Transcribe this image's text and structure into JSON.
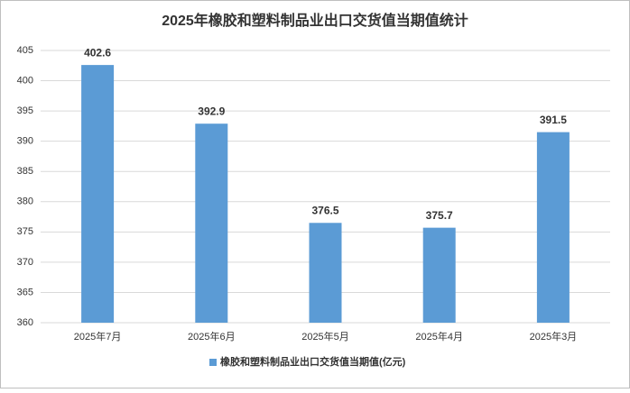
{
  "chart_data": {
    "type": "bar",
    "title": "2025年橡胶和塑料制品业出口交货值当期值统计",
    "categories": [
      "2025年7月",
      "2025年6月",
      "2025年5月",
      "2025年4月",
      "2025年3月"
    ],
    "series": [
      {
        "name": "橡胶和塑料制品业出口交货值当期值(亿元)",
        "color": "#5b9bd5",
        "values": [
          402.6,
          392.9,
          376.5,
          375.7,
          391.5
        ]
      }
    ],
    "ylim": [
      360,
      405
    ],
    "yticks": [
      360,
      365,
      370,
      375,
      380,
      385,
      390,
      395,
      400,
      405
    ],
    "grid": true
  }
}
